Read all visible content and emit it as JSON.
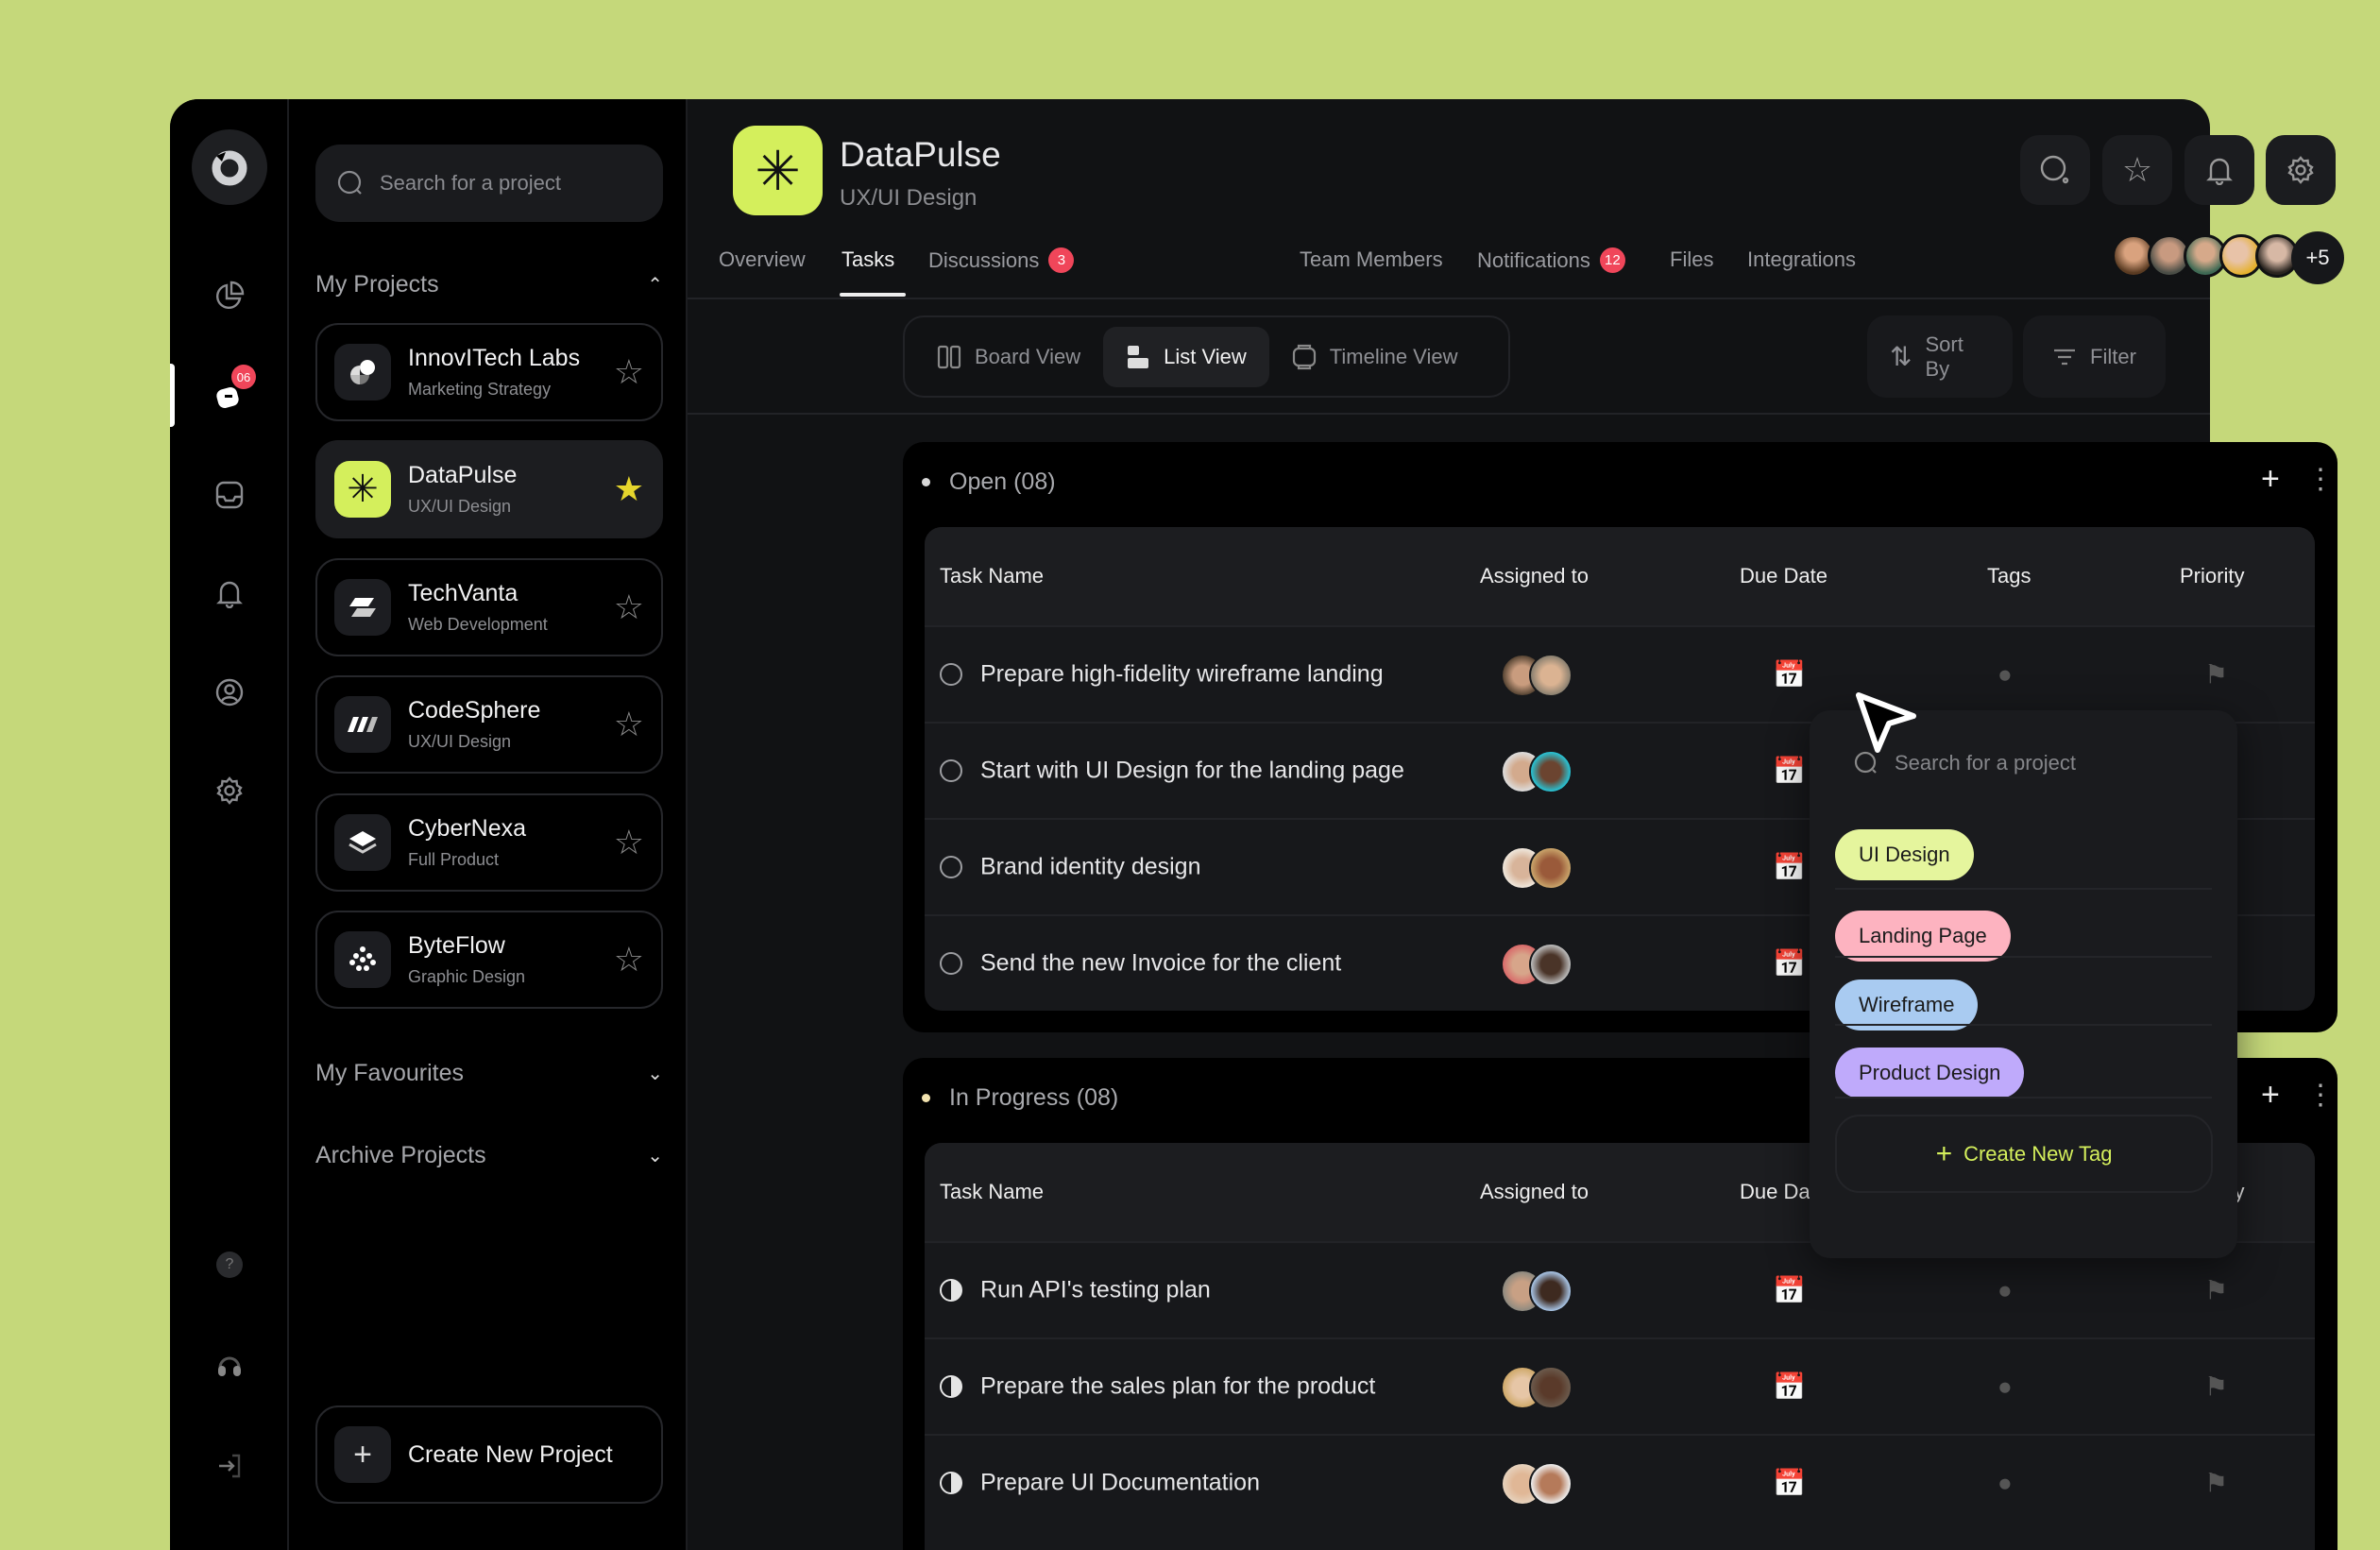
{
  "rail": {
    "badge": "06"
  },
  "sidebar": {
    "search_placeholder": "Search for a project",
    "my_projects": "My Projects",
    "projects": [
      {
        "name": "InnovITech Labs",
        "sub": "Marketing Strategy",
        "starred": false
      },
      {
        "name": "DataPulse",
        "sub": "UX/UI Design",
        "starred": true
      },
      {
        "name": "TechVanta",
        "sub": "Web Development",
        "starred": false
      },
      {
        "name": "CodeSphere",
        "sub": "UX/UI Design",
        "starred": false
      },
      {
        "name": "CyberNexa",
        "sub": "Full Product",
        "starred": false
      },
      {
        "name": "ByteFlow",
        "sub": "Graphic Design",
        "starred": false
      }
    ],
    "my_favourites": "My Favourites",
    "archive": "Archive Projects",
    "create": "Create New Project"
  },
  "header": {
    "title": "DataPulse",
    "subtitle": "UX/UI Design",
    "accent": "#d4ef5c",
    "tabs": [
      {
        "label": "Overview"
      },
      {
        "label": "Tasks",
        "active": true
      },
      {
        "label": "Discussions",
        "badge": "3"
      },
      {
        "label": "Team Members"
      },
      {
        "label": "Notifications",
        "badge": "12"
      },
      {
        "label": "Files"
      },
      {
        "label": "Integrations"
      }
    ],
    "members_more": "+5"
  },
  "toolbar": {
    "board": "Board View",
    "list": "List View",
    "timeline": "Timeline View",
    "sort": "Sort By",
    "filter": "Filter"
  },
  "columns": {
    "task": "Task Name",
    "assigned": "Assigned to",
    "due": "Due Date",
    "tags": "Tags",
    "priority": "Priority"
  },
  "open": {
    "title": "Open (08)",
    "tasks": [
      "Prepare high-fidelity wireframe landing",
      "Start with UI Design for the landing page",
      "Brand identity design",
      "Send the new Invoice for the client"
    ]
  },
  "in_progress": {
    "title": "In Progress (08)",
    "tasks": [
      "Run API's testing plan",
      "Prepare the sales plan for the product",
      "Prepare UI Documentation"
    ]
  },
  "tag_popover": {
    "search_placeholder": "Search for a project",
    "tags": [
      {
        "label": "UI Design",
        "color": "#e5f59d"
      },
      {
        "label": "Landing Page",
        "color": "#fdb3c0"
      },
      {
        "label": "Wireframe",
        "color": "#a9cbf1"
      },
      {
        "label": "Product Design",
        "color": "#bfaafb"
      }
    ],
    "create": "Create New Tag"
  }
}
